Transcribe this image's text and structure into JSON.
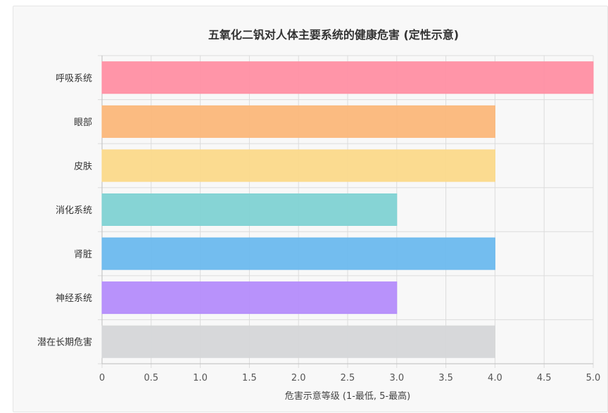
{
  "chart_data": {
    "type": "bar",
    "orientation": "horizontal",
    "title": "五氧化二钒对人体主要系统的健康危害 (定性示意)",
    "xlabel": "危害示意等级 (1-最低, 5-最高)",
    "ylabel": "",
    "xlim": [
      0,
      5
    ],
    "xticks": [
      "0",
      "0.5",
      "1.0",
      "1.5",
      "2.0",
      "2.5",
      "3.0",
      "3.5",
      "4.0",
      "4.5",
      "5.0"
    ],
    "categories": [
      "呼吸系统",
      "眼部",
      "皮肤",
      "消化系统",
      "肾脏",
      "神经系统",
      "潜在长期危害"
    ],
    "values": [
      5,
      4,
      4,
      3,
      4,
      3,
      4
    ],
    "colors": [
      "#ff8fa3",
      "#fbb77a",
      "#fbd98a",
      "#80d2d3",
      "#6cb9ee",
      "#b48cfb",
      "#d5d6d8"
    ],
    "grid": true,
    "legend": "none"
  }
}
